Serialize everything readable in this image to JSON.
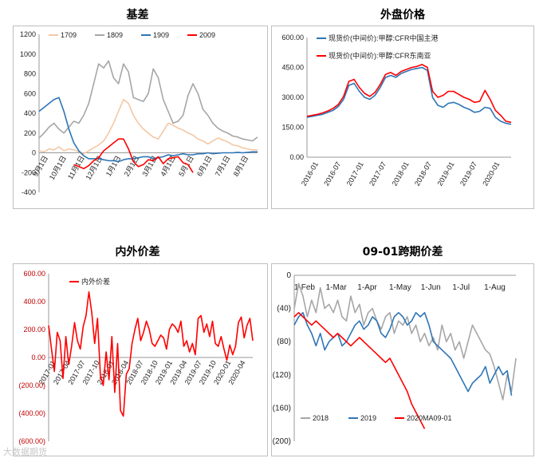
{
  "watermark": "大数据期货",
  "chart_data": [
    {
      "type": "line",
      "title": "基差",
      "ylim": [
        -400,
        1200
      ],
      "y_ticks": [
        1200,
        1000,
        800,
        600,
        400,
        200,
        0,
        -200,
        -400
      ],
      "x_ticks": [
        "9月1日",
        "10月1日",
        "11月1日",
        "12月1日",
        "1月1日",
        "2月1日",
        "3月1日",
        "4月1日",
        "5月1日",
        "6月1日",
        "7月1日",
        "8月1日"
      ],
      "series": [
        {
          "name": "1709",
          "color": "#f4c7a4",
          "values": [
            20,
            10,
            40,
            30,
            60,
            20,
            40,
            30,
            10,
            -10,
            20,
            50,
            80,
            120,
            200,
            300,
            420,
            540,
            500,
            380,
            300,
            240,
            200,
            160,
            140,
            220,
            300,
            280,
            250,
            230,
            200,
            180,
            140,
            120,
            90,
            120,
            150,
            130,
            110,
            80,
            70,
            50,
            40,
            30,
            30
          ]
        },
        {
          "name": "1809",
          "color": "#a6a6a6",
          "values": [
            150,
            200,
            260,
            300,
            240,
            200,
            260,
            320,
            300,
            380,
            500,
            700,
            900,
            860,
            930,
            760,
            700,
            900,
            820,
            560,
            540,
            520,
            600,
            850,
            760,
            540,
            420,
            300,
            320,
            380,
            580,
            700,
            600,
            440,
            380,
            300,
            250,
            220,
            200,
            170,
            160,
            140,
            130,
            120,
            160
          ]
        },
        {
          "name": "1909",
          "color": "#2e75b6",
          "values": [
            420,
            460,
            500,
            540,
            560,
            420,
            240,
            100,
            20,
            -30,
            -60,
            -60,
            -60,
            -70,
            -80,
            -80,
            -90,
            -70,
            -60,
            -60,
            -50,
            -40,
            -40,
            -60,
            -50,
            -40,
            -20,
            -30,
            -20,
            -10,
            -20,
            -20,
            -10,
            -10,
            0,
            -10,
            -5,
            0,
            0,
            0,
            5,
            0,
            5,
            10,
            10
          ]
        },
        {
          "name": "2009",
          "color": "#ff0000",
          "values": [
            null,
            null,
            null,
            null,
            null,
            null,
            null,
            -120,
            -140,
            -160,
            -130,
            -80,
            -50,
            20,
            60,
            100,
            140,
            140,
            40,
            -90,
            -140,
            -120,
            -70,
            -80,
            -40,
            -110,
            -60,
            -50,
            -40,
            -100,
            -120,
            -200,
            null,
            null,
            null,
            null,
            null,
            null,
            null,
            null,
            null,
            null,
            null,
            null,
            null
          ]
        }
      ]
    },
    {
      "type": "line",
      "title": "外盘价格",
      "ylim": [
        0,
        600
      ],
      "y_ticks": [
        "600.00",
        "450.00",
        "300.00",
        "150.00",
        "0.00"
      ],
      "x_ticks": [
        "2016-01",
        "2016-07",
        "2017-01",
        "2017-07",
        "2018-01",
        "2018-07",
        "2019-01",
        "2019-07",
        "2020-01"
      ],
      "series": [
        {
          "name": "现货价(中间价):甲醇:CFR中国主港",
          "color": "#2e75b6",
          "values": [
            200,
            205,
            210,
            215,
            225,
            235,
            255,
            290,
            360,
            370,
            330,
            300,
            290,
            310,
            350,
            400,
            410,
            400,
            420,
            430,
            440,
            445,
            450,
            435,
            300,
            260,
            250,
            270,
            275,
            265,
            250,
            240,
            225,
            230,
            250,
            245,
            200,
            180,
            170,
            165
          ]
        },
        {
          "name": "现货价(中间价):甲醇:CFR东南亚",
          "color": "#ff0000",
          "values": [
            205,
            210,
            215,
            222,
            232,
            245,
            265,
            305,
            380,
            390,
            350,
            320,
            305,
            325,
            365,
            415,
            425,
            410,
            430,
            440,
            450,
            455,
            465,
            450,
            330,
            300,
            310,
            330,
            330,
            315,
            300,
            290,
            275,
            280,
            335,
            290,
            235,
            210,
            180,
            175
          ]
        }
      ]
    },
    {
      "type": "line",
      "title": "内外价差",
      "ylim": [
        -600,
        600
      ],
      "y_ticks": [
        "600.00",
        "400.00",
        "200.00",
        "0.00",
        "(200.00)",
        "(400.00)",
        "(600.00)"
      ],
      "x_ticks": [
        "2017-01",
        "2017-04",
        "2017-07",
        "2017-10",
        "2018-01",
        "2018-04",
        "2018-07",
        "2018-10",
        "2019-01",
        "2019-04",
        "2019-07",
        "2019-10",
        "2020-01",
        "2020-04"
      ],
      "series": [
        {
          "name": "内外价差",
          "color": "#ff0000",
          "values": [
            230,
            60,
            -100,
            180,
            120,
            -150,
            150,
            -50,
            80,
            250,
            120,
            60,
            220,
            300,
            470,
            320,
            100,
            280,
            -130,
            -200,
            40,
            -160,
            150,
            -250,
            100,
            -380,
            -420,
            -120,
            -80,
            100,
            200,
            280,
            120,
            180,
            260,
            200,
            100,
            80,
            120,
            160,
            140,
            60,
            200,
            240,
            220,
            180,
            260,
            80,
            120,
            40,
            100,
            20,
            280,
            300,
            180,
            240,
            150,
            260,
            100,
            80,
            150,
            60,
            -20,
            90,
            20,
            80,
            250,
            290,
            140,
            230,
            280,
            120
          ]
        }
      ]
    },
    {
      "type": "line",
      "title": "09-01跨期价差",
      "ylim": [
        -200,
        0
      ],
      "y_ticks": [
        "0",
        "(40)",
        "(80)",
        "(120)",
        "(160)",
        "(200)"
      ],
      "x_ticks": [
        "1-Feb",
        "1-Mar",
        "1-Apr",
        "1-May",
        "1-Jun",
        "1-Jul",
        "1-Aug"
      ],
      "series": [
        {
          "name": "2018",
          "color": "#a6a6a6",
          "values": [
            -40,
            -10,
            -25,
            -50,
            -30,
            -45,
            -15,
            -40,
            -35,
            -45,
            -30,
            -50,
            -55,
            -25,
            -45,
            -35,
            -60,
            -45,
            -40,
            -55,
            -65,
            -50,
            -45,
            -70,
            -55,
            -60,
            -50,
            -70,
            -60,
            -80,
            -70,
            -85,
            -75,
            -90,
            -60,
            -80,
            -70,
            -90,
            -80,
            -100,
            -80,
            -60,
            -70,
            -80,
            -90,
            -95,
            -110,
            -130,
            -150,
            -120,
            -140,
            -100
          ]
        },
        {
          "name": "2019",
          "color": "#2e75b6",
          "values": [
            -60,
            -50,
            -45,
            -60,
            -70,
            -85,
            -70,
            -90,
            -80,
            -75,
            -70,
            -85,
            -80,
            -70,
            -60,
            -55,
            -65,
            -60,
            -50,
            -55,
            -70,
            -75,
            -65,
            -50,
            -45,
            -50,
            -60,
            -55,
            -45,
            -50,
            -45,
            -60,
            -80,
            -85,
            -90,
            -95,
            -100,
            -110,
            -120,
            -130,
            -140,
            -130,
            -125,
            -120,
            -110,
            -130,
            -120,
            -110,
            -120,
            -115,
            -145
          ]
        },
        {
          "name": "2020MA09-01",
          "color": "#ff0000",
          "values": [
            -50,
            -45,
            -50,
            -55,
            -60,
            -55,
            -60,
            -65,
            -70,
            -75,
            -70,
            -75,
            -80,
            -85,
            -80,
            -75,
            -80,
            -85,
            -90,
            -95,
            -100,
            -105,
            -100,
            -110,
            -120,
            -130,
            -140,
            -155,
            -165,
            -175,
            -185,
            null,
            null,
            null,
            null,
            null,
            null,
            null,
            null,
            null,
            null,
            null,
            null,
            null,
            null,
            null,
            null,
            null,
            null,
            null,
            null
          ]
        }
      ]
    }
  ]
}
